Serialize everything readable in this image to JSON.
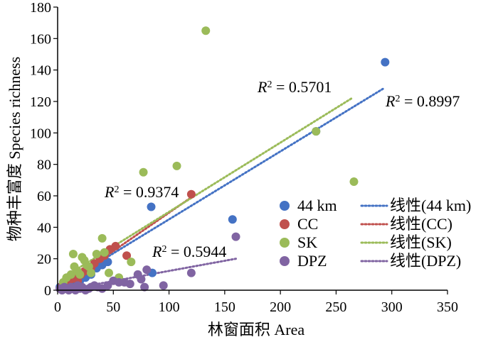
{
  "chart_data": {
    "type": "scatter",
    "title": "",
    "xlabel": "林窗面积 Area",
    "ylabel": "物种丰富度 Species richness",
    "xlim": [
      0,
      350
    ],
    "ylim": [
      0,
      180
    ],
    "xticks": [
      "0",
      "50",
      "100",
      "150",
      "200",
      "250",
      "300",
      "350"
    ],
    "yticks": [
      "0",
      "20",
      "40",
      "60",
      "80",
      "100",
      "120",
      "140",
      "160",
      "180"
    ],
    "grid": false,
    "legend_position": "bottom-right",
    "series": [
      {
        "name": "44 km",
        "trend_name": "线性(44 km)",
        "color": "#4472C4",
        "points": [
          [
            2,
            2
          ],
          [
            4,
            1
          ],
          [
            6,
            3
          ],
          [
            8,
            4
          ],
          [
            10,
            3
          ],
          [
            12,
            5
          ],
          [
            14,
            6
          ],
          [
            16,
            4
          ],
          [
            18,
            8
          ],
          [
            20,
            6
          ],
          [
            22,
            10
          ],
          [
            25,
            8
          ],
          [
            28,
            12
          ],
          [
            30,
            10
          ],
          [
            35,
            14
          ],
          [
            40,
            16
          ],
          [
            45,
            18
          ],
          [
            84,
            53
          ],
          [
            85,
            11
          ],
          [
            157,
            45
          ],
          [
            232,
            101
          ],
          [
            294,
            145
          ]
        ],
        "trend": {
          "x": [
            5,
            292
          ],
          "y": [
            4,
            128
          ]
        },
        "r2_label": "R² = 0.8997",
        "r2_italic": "R",
        "r2_rest": " = 0.8997"
      },
      {
        "name": "CC",
        "trend_name": "线性(CC)",
        "color": "#C0504D",
        "points": [
          [
            3,
            2
          ],
          [
            6,
            4
          ],
          [
            9,
            5
          ],
          [
            12,
            7
          ],
          [
            15,
            8
          ],
          [
            18,
            6
          ],
          [
            21,
            10
          ],
          [
            24,
            12
          ],
          [
            27,
            15
          ],
          [
            30,
            14
          ],
          [
            33,
            17
          ],
          [
            38,
            20
          ],
          [
            42,
            22
          ],
          [
            47,
            26
          ],
          [
            52,
            28
          ],
          [
            62,
            22
          ],
          [
            120,
            61
          ]
        ],
        "trend": {
          "x": [
            5,
            122
          ],
          "y": [
            3,
            60
          ]
        },
        "r2_label": "R² = 0.9374",
        "r2_italic": "R",
        "r2_rest": " = 0.9374"
      },
      {
        "name": "SK",
        "trend_name": "线性(SK)",
        "color": "#9BBB59",
        "points": [
          [
            5,
            5
          ],
          [
            8,
            8
          ],
          [
            12,
            10
          ],
          [
            14,
            23
          ],
          [
            15,
            15
          ],
          [
            18,
            12
          ],
          [
            20,
            10
          ],
          [
            22,
            21
          ],
          [
            24,
            19
          ],
          [
            26,
            16
          ],
          [
            28,
            15
          ],
          [
            30,
            11
          ],
          [
            35,
            23
          ],
          [
            40,
            33
          ],
          [
            42,
            24
          ],
          [
            46,
            11
          ],
          [
            55,
            8
          ],
          [
            66,
            18
          ],
          [
            77,
            75
          ],
          [
            107,
            79
          ],
          [
            133,
            165
          ],
          [
            232,
            101
          ],
          [
            266,
            69
          ]
        ],
        "trend": {
          "x": [
            5,
            264
          ],
          "y": [
            8,
            122
          ]
        },
        "r2_label": "R² = 0.5701",
        "r2_italic": "R",
        "r2_rest": " = 0.5701"
      },
      {
        "name": "DPZ",
        "trend_name": "线性(DPZ)",
        "color": "#8064A2",
        "points": [
          [
            2,
            1
          ],
          [
            4,
            0
          ],
          [
            6,
            2
          ],
          [
            8,
            1
          ],
          [
            10,
            0
          ],
          [
            12,
            2
          ],
          [
            14,
            1
          ],
          [
            16,
            0
          ],
          [
            18,
            3
          ],
          [
            20,
            1
          ],
          [
            22,
            2
          ],
          [
            25,
            0
          ],
          [
            28,
            1
          ],
          [
            30,
            2
          ],
          [
            33,
            3
          ],
          [
            36,
            2
          ],
          [
            40,
            1
          ],
          [
            45,
            3
          ],
          [
            50,
            6
          ],
          [
            55,
            5
          ],
          [
            60,
            5
          ],
          [
            65,
            4
          ],
          [
            72,
            10
          ],
          [
            75,
            7
          ],
          [
            78,
            2
          ],
          [
            80,
            13
          ],
          [
            95,
            3
          ],
          [
            120,
            11
          ],
          [
            160,
            34
          ]
        ],
        "trend": {
          "x": [
            5,
            160
          ],
          "y": [
            0,
            20
          ]
        },
        "r2_label": "R² = 0.5944",
        "r2_italic": "R",
        "r2_rest": " = 0.5944"
      }
    ]
  }
}
